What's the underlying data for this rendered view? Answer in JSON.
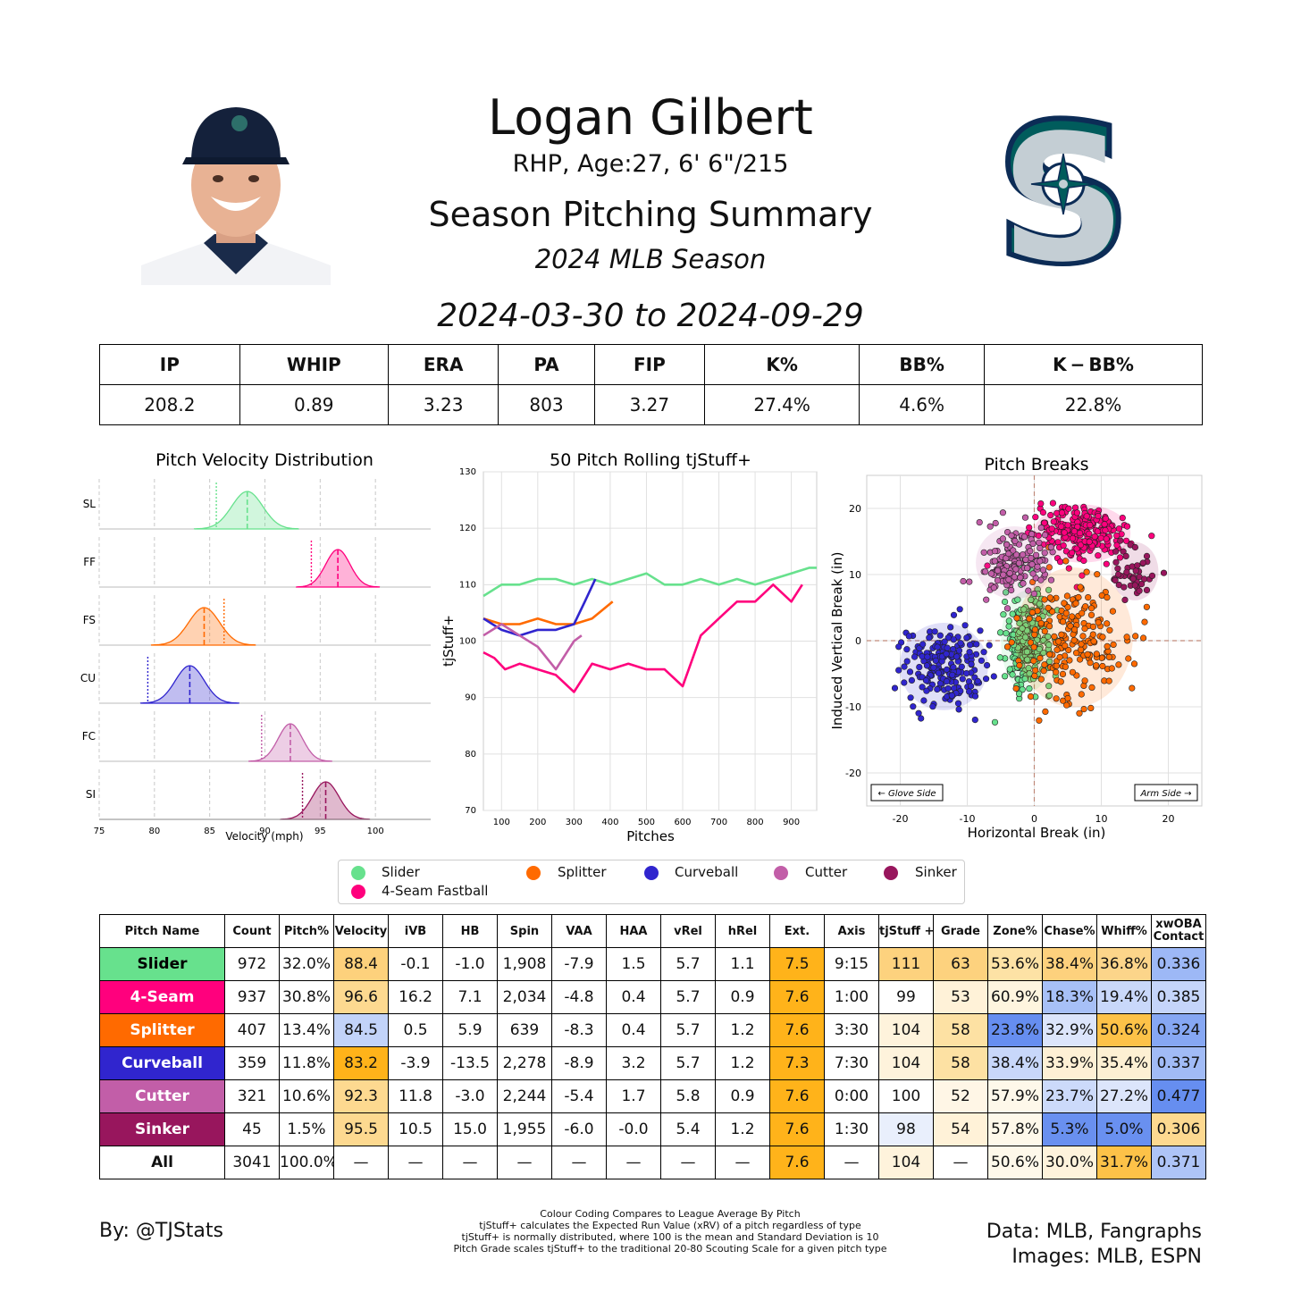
{
  "header": {
    "name": "Logan Gilbert",
    "bio": "RHP, Age:27, 6' 6\"/215",
    "subtitle": "Season Pitching Summary",
    "season": "2024 MLB Season",
    "date_range": "2024-03-30 to 2024-09-29"
  },
  "season_stats": {
    "headers": [
      "IP",
      "WHIP",
      "ERA",
      "PA",
      "FIP",
      "K%",
      "BB%",
      "K − BB%"
    ],
    "values": [
      "208.2",
      "0.89",
      "3.23",
      "803",
      "3.27",
      "27.4%",
      "4.6%",
      "22.8%"
    ]
  },
  "colors": {
    "Slider": "#67e18d",
    "4-Seam Fastball": "#ff007d",
    "Splitter": "#ff6a00",
    "Curveball": "#3025ce",
    "Cutter": "#c25ea8",
    "Sinker": "#98165d"
  },
  "legend": [
    "Slider",
    "Splitter",
    "Curveball",
    "Cutter",
    "Sinker",
    "4-Seam Fastball"
  ],
  "chart_data": [
    {
      "type": "area",
      "title": "Pitch Velocity Distribution",
      "xlabel": "Velocity (mph)",
      "xlim": [
        75,
        105
      ],
      "xticks": [
        75,
        80,
        85,
        90,
        95,
        100
      ],
      "grid": true,
      "series": [
        {
          "name": "SL",
          "pitch": "Slider",
          "mean": 88.4,
          "sd": 1.4,
          "league_avg": 85.6
        },
        {
          "name": "FF",
          "pitch": "4-Seam Fastball",
          "mean": 96.6,
          "sd": 1.1,
          "league_avg": 94.2
        },
        {
          "name": "FS",
          "pitch": "Splitter",
          "mean": 84.5,
          "sd": 1.4,
          "league_avg": 86.3
        },
        {
          "name": "CU",
          "pitch": "Curveball",
          "mean": 83.2,
          "sd": 1.3,
          "league_avg": 79.4
        },
        {
          "name": "FC",
          "pitch": "Cutter",
          "mean": 92.3,
          "sd": 1.1,
          "league_avg": 89.7
        },
        {
          "name": "SI",
          "pitch": "Sinker",
          "mean": 95.5,
          "sd": 1.2,
          "league_avg": 93.4
        }
      ]
    },
    {
      "type": "line",
      "title": "50 Pitch Rolling tjStuff+",
      "xlabel": "Pitches",
      "ylabel": "tjStuff+",
      "xlim": [
        50,
        970
      ],
      "ylim": [
        70,
        130
      ],
      "xticks": [
        100,
        200,
        300,
        400,
        500,
        600,
        700,
        800,
        900
      ],
      "yticks": [
        70,
        80,
        90,
        100,
        110,
        120,
        130
      ],
      "grid": true,
      "series": [
        {
          "pitch": "Slider",
          "x": [
            50,
            100,
            150,
            200,
            250,
            300,
            350,
            400,
            450,
            500,
            550,
            600,
            650,
            700,
            750,
            800,
            850,
            900,
            950,
            970
          ],
          "y": [
            108,
            110,
            110,
            111,
            111,
            110,
            111,
            110,
            111,
            112,
            110,
            110,
            111,
            110,
            111,
            110,
            111,
            112,
            113,
            113
          ]
        },
        {
          "pitch": "4-Seam Fastball",
          "x": [
            50,
            80,
            110,
            150,
            200,
            250,
            300,
            350,
            400,
            450,
            500,
            550,
            600,
            650,
            700,
            750,
            800,
            850,
            900,
            930
          ],
          "y": [
            98,
            97,
            95,
            96,
            95,
            94,
            91,
            96,
            95,
            96,
            95,
            95,
            92,
            101,
            104,
            107,
            107,
            110,
            107,
            110
          ]
        },
        {
          "pitch": "Splitter",
          "x": [
            50,
            100,
            150,
            200,
            250,
            300,
            350,
            407
          ],
          "y": [
            104,
            103,
            103,
            104,
            103,
            103,
            104,
            107
          ]
        },
        {
          "pitch": "Curveball",
          "x": [
            50,
            100,
            150,
            200,
            250,
            300,
            330,
            359
          ],
          "y": [
            104,
            102,
            101,
            102,
            102,
            103,
            107,
            111
          ]
        },
        {
          "pitch": "Cutter",
          "x": [
            50,
            100,
            150,
            200,
            250,
            300,
            321
          ],
          "y": [
            101,
            103,
            101,
            99,
            95,
            100,
            101
          ]
        },
        {
          "pitch": "Sinker",
          "x": [
            50
          ],
          "y": [
            104
          ]
        }
      ]
    },
    {
      "type": "scatter",
      "title": "Pitch Breaks",
      "xlabel": "Horizontal Break (in)",
      "ylabel": "Induced Vertical Break (in)",
      "xlim": [
        -25,
        25
      ],
      "ylim": [
        -25,
        25
      ],
      "xticks": [
        -20,
        -10,
        0,
        10,
        20
      ],
      "yticks": [
        -20,
        -10,
        0,
        10,
        20
      ],
      "annotations": [
        "← Glove Side",
        "Arm Side →"
      ],
      "grid": true,
      "series": [
        {
          "pitch": "Slider",
          "hb": -1.0,
          "ivb": -0.1,
          "spread": [
            1.8,
            3.5
          ],
          "n": 260
        },
        {
          "pitch": "4-Seam Fastball",
          "hb": 7.1,
          "ivb": 16.2,
          "spread": [
            3.3,
            2.0
          ],
          "n": 250
        },
        {
          "pitch": "Splitter",
          "hb": 5.9,
          "ivb": 0.5,
          "spread": [
            4.0,
            4.8
          ],
          "n": 200
        },
        {
          "pitch": "Curveball",
          "hb": -13.5,
          "ivb": -3.9,
          "spread": [
            3.0,
            3.0
          ],
          "n": 200
        },
        {
          "pitch": "Cutter",
          "hb": -3.0,
          "ivb": 11.8,
          "spread": [
            2.6,
            2.5
          ],
          "n": 150
        },
        {
          "pitch": "Sinker",
          "hb": 15.0,
          "ivb": 10.5,
          "spread": [
            1.6,
            2.0
          ],
          "n": 45
        }
      ]
    }
  ],
  "pitch_table": {
    "headers": [
      "Pitch Name",
      "Count",
      "Pitch%",
      "Velocity",
      "iVB",
      "HB",
      "Spin",
      "VAA",
      "HAA",
      "vRel",
      "hRel",
      "Ext.",
      "Axis",
      "tjStuff +",
      "Grade",
      "Zone%",
      "Chase%",
      "Whiff%",
      "xwOBA Contact"
    ],
    "rows": [
      {
        "name": "Slider",
        "pitch": "Slider",
        "cells": [
          "972",
          "32.0%",
          "88.4",
          "-0.1",
          "-1.0",
          "1,908",
          "-7.9",
          "1.5",
          "5.7",
          "1.1",
          "7.5",
          "9:15",
          "111",
          "63",
          "53.6%",
          "38.4%",
          "36.8%",
          "0.336"
        ],
        "shades": [
          null,
          null,
          "#fdd17c",
          null,
          null,
          null,
          null,
          null,
          null,
          null,
          "#ffb31a",
          null,
          "#fdd27e",
          "#fdd27e",
          "#fde2a5",
          "#fdd17d",
          "#fcd58a",
          "#9db8f6"
        ]
      },
      {
        "name": "4-Seam",
        "pitch": "4-Seam Fastball",
        "cells": [
          "937",
          "30.8%",
          "96.6",
          "16.2",
          "7.1",
          "2,034",
          "-4.8",
          "0.4",
          "5.7",
          "0.9",
          "7.6",
          "1:00",
          "99",
          "53",
          "60.9%",
          "18.3%",
          "19.4%",
          "0.385"
        ],
        "shades": [
          null,
          null,
          "#fdd990",
          null,
          null,
          null,
          null,
          null,
          null,
          null,
          "#ffb31a",
          null,
          "#ffffff",
          "#fff2d8",
          "#fef5df",
          "#a7c0f7",
          "#c9d8fa",
          "#c5d5fa"
        ]
      },
      {
        "name": "Splitter",
        "pitch": "Splitter",
        "cells": [
          "407",
          "13.4%",
          "84.5",
          "0.5",
          "5.9",
          "639",
          "-8.3",
          "0.4",
          "5.7",
          "1.2",
          "7.6",
          "3:30",
          "104",
          "58",
          "23.8%",
          "32.9%",
          "50.6%",
          "0.324"
        ],
        "shades": [
          null,
          null,
          "#c2d3f9",
          null,
          null,
          null,
          null,
          null,
          null,
          null,
          "#ffb31a",
          null,
          "#fef3dc",
          "#fde1a3",
          "#668ef0",
          "#dce5fb",
          "#fdc248",
          "#86a7f3"
        ]
      },
      {
        "name": "Curveball",
        "pitch": "Curveball",
        "cells": [
          "359",
          "11.8%",
          "83.2",
          "-3.9",
          "-13.5",
          "2,278",
          "-8.9",
          "3.2",
          "5.7",
          "1.2",
          "7.3",
          "7:30",
          "104",
          "58",
          "38.4%",
          "33.9%",
          "35.4%",
          "0.337"
        ],
        "shades": [
          null,
          null,
          "#ffb31a",
          null,
          null,
          null,
          null,
          null,
          null,
          null,
          "#ffb31a",
          null,
          "#fef3dc",
          "#fde1a3",
          "#c8d7fa",
          "#fef0d5",
          "#fdf0d3",
          "#a1bbf6"
        ]
      },
      {
        "name": "Cutter",
        "pitch": "Cutter",
        "cells": [
          "321",
          "10.6%",
          "92.3",
          "11.8",
          "-3.0",
          "2,244",
          "-5.4",
          "1.7",
          "5.8",
          "0.9",
          "7.6",
          "0:00",
          "100",
          "52",
          "57.9%",
          "23.7%",
          "27.2%",
          "0.477"
        ],
        "shades": [
          null,
          null,
          "#fdd990",
          null,
          null,
          null,
          null,
          null,
          null,
          null,
          "#ffb31a",
          null,
          "#ffffff",
          "#fff6e6",
          "#fef8ea",
          "#ccdafa",
          "#dce5fb",
          "#668ef0"
        ]
      },
      {
        "name": "Sinker",
        "pitch": "Sinker",
        "cells": [
          "45",
          "1.5%",
          "95.5",
          "10.5",
          "15.0",
          "1,955",
          "-6.0",
          "-0.0",
          "5.4",
          "1.2",
          "7.6",
          "1:30",
          "98",
          "54",
          "57.8%",
          "5.3%",
          "5.0%",
          "0.306"
        ],
        "shades": [
          null,
          null,
          "#fdd990",
          null,
          null,
          null,
          null,
          null,
          null,
          null,
          "#ffb31a",
          null,
          "#e9effc",
          "#fff2d8",
          "#fef8ea",
          "#6990f0",
          "#6990f0",
          "#fdd990"
        ]
      },
      {
        "name": "All",
        "pitch": null,
        "cells": [
          "3041",
          "100.0%",
          "—",
          "—",
          "—",
          "—",
          "—",
          "—",
          "—",
          "—",
          "7.6",
          "—",
          "104",
          "—",
          "50.6%",
          "30.0%",
          "31.7%",
          "0.371"
        ],
        "shades": [
          null,
          null,
          null,
          null,
          null,
          null,
          null,
          null,
          null,
          null,
          "#ffb31a",
          null,
          "#fef3dc",
          null,
          "#fef8ea",
          "#fef3dc",
          "#fdc248",
          "#aec4f7"
        ]
      }
    ]
  },
  "footer": {
    "byline": "By: @TJStats",
    "notes": [
      "Colour Coding Compares to League Average By Pitch",
      "tjStuff+ calculates the Expected Run Value (xRV) of a pitch regardless of type",
      "tjStuff+ is normally distributed, where 100 is the mean and Standard Deviation is 10",
      "Pitch Grade scales tjStuff+ to the traditional 20-80 Scouting Scale for a given pitch type"
    ],
    "credits": [
      "Data: MLB, Fangraphs",
      "Images: MLB, ESPN"
    ]
  }
}
